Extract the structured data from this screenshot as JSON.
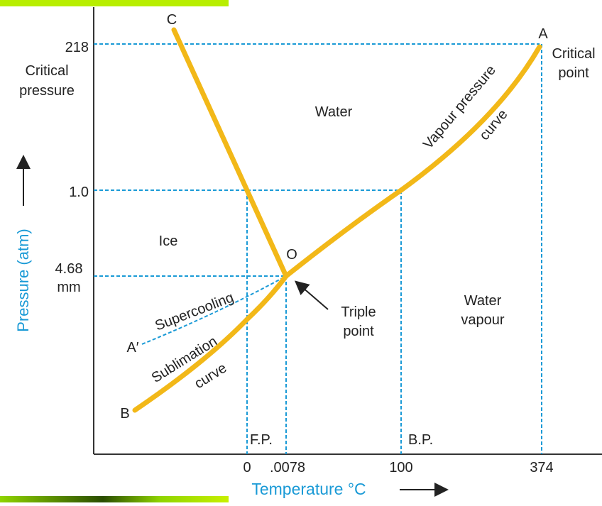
{
  "axes": {
    "y_label": "Pressure (atm)",
    "x_label": "Temperature °C",
    "y_ticks": [
      "218",
      "1.0",
      "4.68",
      "mm"
    ],
    "y_notes": [
      "Critical",
      "pressure"
    ],
    "x_ticks": [
      "0",
      ".0078",
      "100",
      "374"
    ],
    "x_marks": [
      "F.P.",
      "B.P."
    ]
  },
  "points": {
    "A": "A",
    "C": "C",
    "O": "O",
    "B": "B",
    "A2": "A′"
  },
  "regions": {
    "water": "Water",
    "ice": "Ice",
    "vapour": [
      "Water",
      "vapour"
    ]
  },
  "annotations": {
    "critical_point": [
      "Critical",
      "point"
    ],
    "triple_point": [
      "Triple",
      "point"
    ],
    "vapour_curve": [
      "Vapour pressure",
      "curve"
    ],
    "supercooling": "Supercooling",
    "sublimation": [
      "Sublimation",
      "curve"
    ]
  }
}
